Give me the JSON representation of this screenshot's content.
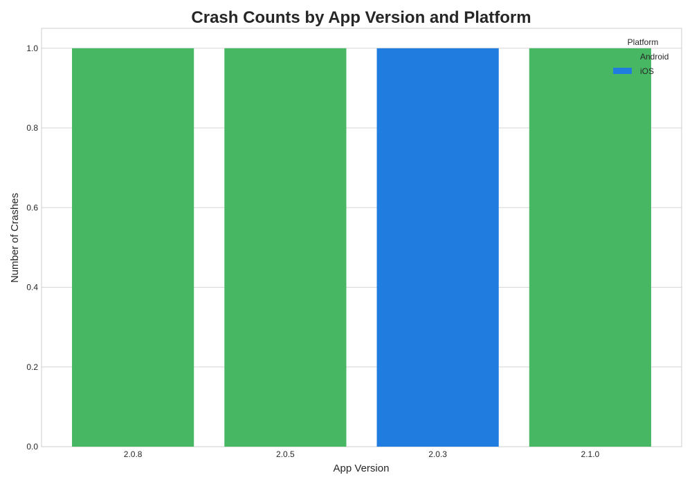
{
  "chart_data": {
    "type": "bar",
    "title": "Crash Counts by App Version and Platform",
    "xlabel": "App Version",
    "ylabel": "Number of Crashes",
    "categories": [
      "2.0.8",
      "2.0.5",
      "2.0.3",
      "2.1.0"
    ],
    "values": [
      1,
      1,
      1,
      1
    ],
    "bar_platforms": [
      "Android",
      "Android",
      "iOS",
      "Android"
    ],
    "ylim": [
      0,
      1.05
    ],
    "yticks": [
      "0.0",
      "0.2",
      "0.4",
      "0.6",
      "0.8",
      "1.0"
    ],
    "grid": true,
    "legend": {
      "title": "Platform",
      "placement": "top-right",
      "entries": [
        {
          "name": "Android",
          "color": "#48b764"
        },
        {
          "name": "iOS",
          "color": "#207cde"
        }
      ]
    },
    "colors": {
      "Android": "#48b764",
      "iOS": "#207cde"
    }
  }
}
